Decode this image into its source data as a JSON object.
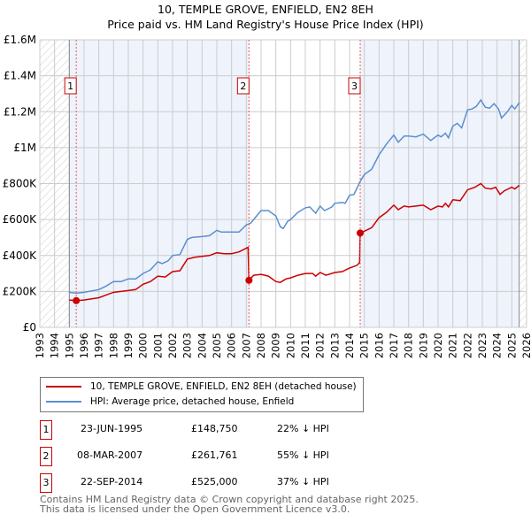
{
  "title": "10, TEMPLE GROVE, ENFIELD, EN2 8EH",
  "subtitle": "Price paid vs. HM Land Registry's House Price Index (HPI)",
  "chart_data": {
    "type": "line",
    "xlim": [
      1993,
      2026
    ],
    "ylim": [
      0,
      1600000
    ],
    "x_ticks": [
      1993,
      1994,
      1995,
      1996,
      1997,
      1998,
      1999,
      2000,
      2001,
      2002,
      2003,
      2004,
      2005,
      2006,
      2007,
      2008,
      2009,
      2010,
      2011,
      2012,
      2013,
      2014,
      2015,
      2016,
      2017,
      2018,
      2019,
      2020,
      2021,
      2022,
      2023,
      2024,
      2025,
      2026
    ],
    "y_ticks": [
      {
        "value": 0,
        "label": "£0"
      },
      {
        "value": 200000,
        "label": "£200K"
      },
      {
        "value": 400000,
        "label": "£400K"
      },
      {
        "value": 600000,
        "label": "£600K"
      },
      {
        "value": 800000,
        "label": "£800K"
      },
      {
        "value": 1000000,
        "label": "£1M"
      },
      {
        "value": 1200000,
        "label": "£1.2M"
      },
      {
        "value": 1400000,
        "label": "£1.4M"
      },
      {
        "value": 1600000,
        "label": "£1.6M"
      }
    ],
    "grid": true,
    "colors": {
      "property": "#cc0000",
      "hpi": "#5b8fd0",
      "shade": "#eef3fc"
    },
    "data_range": [
      1995,
      2025.5
    ],
    "series": [
      {
        "name": "10, TEMPLE GROVE, ENFIELD, EN2 8EH (detached house)",
        "key": "property",
        "points": [
          [
            1995.0,
            152
          ],
          [
            1995.47,
            148.75
          ],
          [
            1996,
            152
          ],
          [
            1997,
            165
          ],
          [
            1997.5,
            180
          ],
          [
            1998,
            195
          ],
          [
            1998.5,
            200
          ],
          [
            1999,
            205
          ],
          [
            1999.5,
            210
          ],
          [
            2000,
            240
          ],
          [
            2000.5,
            255
          ],
          [
            2001,
            285
          ],
          [
            2001.5,
            280
          ],
          [
            2002,
            310
          ],
          [
            2002.5,
            315
          ],
          [
            2003,
            380
          ],
          [
            2003.5,
            390
          ],
          [
            2004,
            395
          ],
          [
            2004.5,
            400
          ],
          [
            2005,
            415
          ],
          [
            2005.5,
            410
          ],
          [
            2006,
            410
          ],
          [
            2006.5,
            420
          ],
          [
            2007.0,
            440
          ],
          [
            2007.12,
            445
          ],
          [
            2007.18,
            261.761
          ],
          [
            2007.5,
            290
          ],
          [
            2008,
            295
          ],
          [
            2008.5,
            285
          ],
          [
            2009,
            255
          ],
          [
            2009.3,
            250
          ],
          [
            2009.7,
            270
          ],
          [
            2010,
            275
          ],
          [
            2010.5,
            290
          ],
          [
            2011,
            300
          ],
          [
            2011.5,
            300
          ],
          [
            2011.7,
            285
          ],
          [
            2012,
            305
          ],
          [
            2012.4,
            290
          ],
          [
            2013,
            305
          ],
          [
            2013.5,
            310
          ],
          [
            2014,
            330
          ],
          [
            2014.5,
            345
          ],
          [
            2014.68,
            360
          ],
          [
            2014.72,
            525
          ],
          [
            2015,
            535
          ],
          [
            2015.5,
            555
          ],
          [
            2016,
            610
          ],
          [
            2016.5,
            640
          ],
          [
            2017,
            680
          ],
          [
            2017.3,
            655
          ],
          [
            2017.7,
            675
          ],
          [
            2018,
            670
          ],
          [
            2018.5,
            675
          ],
          [
            2019,
            680
          ],
          [
            2019.5,
            655
          ],
          [
            2020,
            675
          ],
          [
            2020.3,
            670
          ],
          [
            2020.5,
            690
          ],
          [
            2020.7,
            670
          ],
          [
            2021,
            710
          ],
          [
            2021.5,
            705
          ],
          [
            2022,
            765
          ],
          [
            2022.5,
            780
          ],
          [
            2022.9,
            800
          ],
          [
            2023.2,
            775
          ],
          [
            2023.6,
            770
          ],
          [
            2023.9,
            780
          ],
          [
            2024.2,
            740
          ],
          [
            2024.5,
            760
          ],
          [
            2025,
            780
          ],
          [
            2025.2,
            770
          ],
          [
            2025.5,
            790
          ]
        ]
      },
      {
        "name": "HPI: Average price, detached house, Enfield",
        "key": "hpi",
        "points": [
          [
            1995.0,
            195
          ],
          [
            1995.5,
            190
          ],
          [
            1996,
            195
          ],
          [
            1997,
            210
          ],
          [
            1997.5,
            230
          ],
          [
            1998,
            255
          ],
          [
            1998.5,
            255
          ],
          [
            1999,
            270
          ],
          [
            1999.5,
            270
          ],
          [
            2000,
            300
          ],
          [
            2000.5,
            320
          ],
          [
            2001,
            365
          ],
          [
            2001.3,
            355
          ],
          [
            2001.7,
            370
          ],
          [
            2002,
            400
          ],
          [
            2002.5,
            405
          ],
          [
            2003,
            490
          ],
          [
            2003.3,
            500
          ],
          [
            2004,
            505
          ],
          [
            2004.5,
            510
          ],
          [
            2005,
            540
          ],
          [
            2005.3,
            530
          ],
          [
            2006,
            530
          ],
          [
            2006.5,
            530
          ],
          [
            2007,
            570
          ],
          [
            2007.3,
            580
          ],
          [
            2007.6,
            610
          ],
          [
            2008,
            650
          ],
          [
            2008.5,
            650
          ],
          [
            2009,
            620
          ],
          [
            2009.3,
            560
          ],
          [
            2009.5,
            550
          ],
          [
            2009.8,
            590
          ],
          [
            2010,
            600
          ],
          [
            2010.5,
            640
          ],
          [
            2011,
            665
          ],
          [
            2011.3,
            670
          ],
          [
            2011.7,
            635
          ],
          [
            2012,
            675
          ],
          [
            2012.3,
            650
          ],
          [
            2012.8,
            670
          ],
          [
            2013,
            690
          ],
          [
            2013.5,
            695
          ],
          [
            2013.7,
            690
          ],
          [
            2014,
            735
          ],
          [
            2014.3,
            740
          ],
          [
            2014.7,
            810
          ],
          [
            2015,
            850
          ],
          [
            2015.5,
            880
          ],
          [
            2016,
            960
          ],
          [
            2016.5,
            1020
          ],
          [
            2017,
            1070
          ],
          [
            2017.3,
            1030
          ],
          [
            2017.7,
            1065
          ],
          [
            2018,
            1065
          ],
          [
            2018.5,
            1060
          ],
          [
            2019,
            1075
          ],
          [
            2019.5,
            1040
          ],
          [
            2020,
            1070
          ],
          [
            2020.2,
            1060
          ],
          [
            2020.5,
            1080
          ],
          [
            2020.7,
            1055
          ],
          [
            2021,
            1120
          ],
          [
            2021.3,
            1135
          ],
          [
            2021.6,
            1110
          ],
          [
            2022,
            1210
          ],
          [
            2022.3,
            1215
          ],
          [
            2022.6,
            1230
          ],
          [
            2022.9,
            1265
          ],
          [
            2023.2,
            1225
          ],
          [
            2023.5,
            1220
          ],
          [
            2023.8,
            1245
          ],
          [
            2024.1,
            1215
          ],
          [
            2024.3,
            1165
          ],
          [
            2024.7,
            1200
          ],
          [
            2025,
            1235
          ],
          [
            2025.2,
            1215
          ],
          [
            2025.5,
            1250
          ]
        ]
      }
    ],
    "sales": [
      {
        "label": "1",
        "x": 1995.47,
        "value": 148750
      },
      {
        "label": "2",
        "x": 2007.18,
        "value": 261761
      },
      {
        "label": "3",
        "x": 2014.72,
        "value": 525000
      }
    ],
    "value_unit": "series points in £K"
  },
  "legend": {
    "property": "10, TEMPLE GROVE, ENFIELD, EN2 8EH (detached house)",
    "hpi": "HPI: Average price, detached house, Enfield"
  },
  "transactions": [
    {
      "num": "1",
      "date": "23-JUN-1995",
      "price": "£148,750",
      "diff": "22% ↓ HPI"
    },
    {
      "num": "2",
      "date": "08-MAR-2007",
      "price": "£261,761",
      "diff": "55% ↓ HPI"
    },
    {
      "num": "3",
      "date": "22-SEP-2014",
      "price": "£525,000",
      "diff": "37% ↓ HPI"
    }
  ],
  "footer": {
    "line1": "Contains HM Land Registry data © Crown copyright and database right 2025.",
    "line2": "This data is licensed under the Open Government Licence v3.0."
  }
}
